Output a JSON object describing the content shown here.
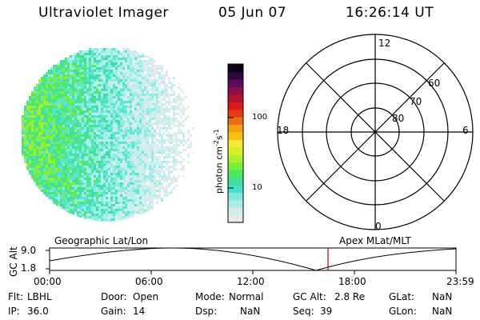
{
  "header": {
    "instrument": "Ultraviolet Imager",
    "date": "05 Jun 07",
    "time": "16:26:14 UT"
  },
  "colorbar": {
    "unit_prefix": "photon cm",
    "unit_exp1": "-2",
    "unit_mid": "s",
    "unit_exp2": "-1",
    "ticks": [
      "100",
      "10"
    ],
    "colors": [
      "#e8ece8",
      "#d0ecec",
      "#a8ecec",
      "#7fe8e0",
      "#44e0cc",
      "#3ede9c",
      "#4ee85a",
      "#78f03a",
      "#a8f230",
      "#d6f028",
      "#f4e838",
      "#f8c010",
      "#f4a010",
      "#ec6e10",
      "#e83a10",
      "#d81a1a",
      "#b01430",
      "#8a1048",
      "#5c0c5c",
      "#30083c",
      "#0c0418"
    ]
  },
  "polar": {
    "labels": {
      "top": "12",
      "bottom": "0",
      "left": "18",
      "right": "6"
    },
    "rings": [
      "60",
      "70",
      "80"
    ]
  },
  "timeline": {
    "left_title": "Geographic Lat/Lon",
    "right_title": "Apex MLat/MLT",
    "ylabel": "GC Alt",
    "ytick_top": "9.0",
    "ytick_bottom": "1.8",
    "xticks": [
      "00:00",
      "06:00",
      "12:00",
      "18:00",
      "23:59"
    ],
    "marker_color": "#c00000"
  },
  "info": {
    "flt_label": "Flt:",
    "flt_value": "LBHL",
    "ip_label": "IP:",
    "ip_value": "36.0",
    "door_label": "Door:",
    "door_value": "Open",
    "gain_label": "Gain:",
    "gain_value": "14",
    "mode_label": "Mode:",
    "mode_value": "Normal",
    "dsp_label": "Dsp:",
    "dsp_value": "NaN",
    "gcalt_label": "GC Alt:",
    "gcalt_value": "2.8 Re",
    "seq_label": "Seq:",
    "seq_value": "39",
    "glat_label": "GLat:",
    "glat_value": "NaN",
    "glon_label": "GLon:",
    "glon_value": "NaN"
  }
}
